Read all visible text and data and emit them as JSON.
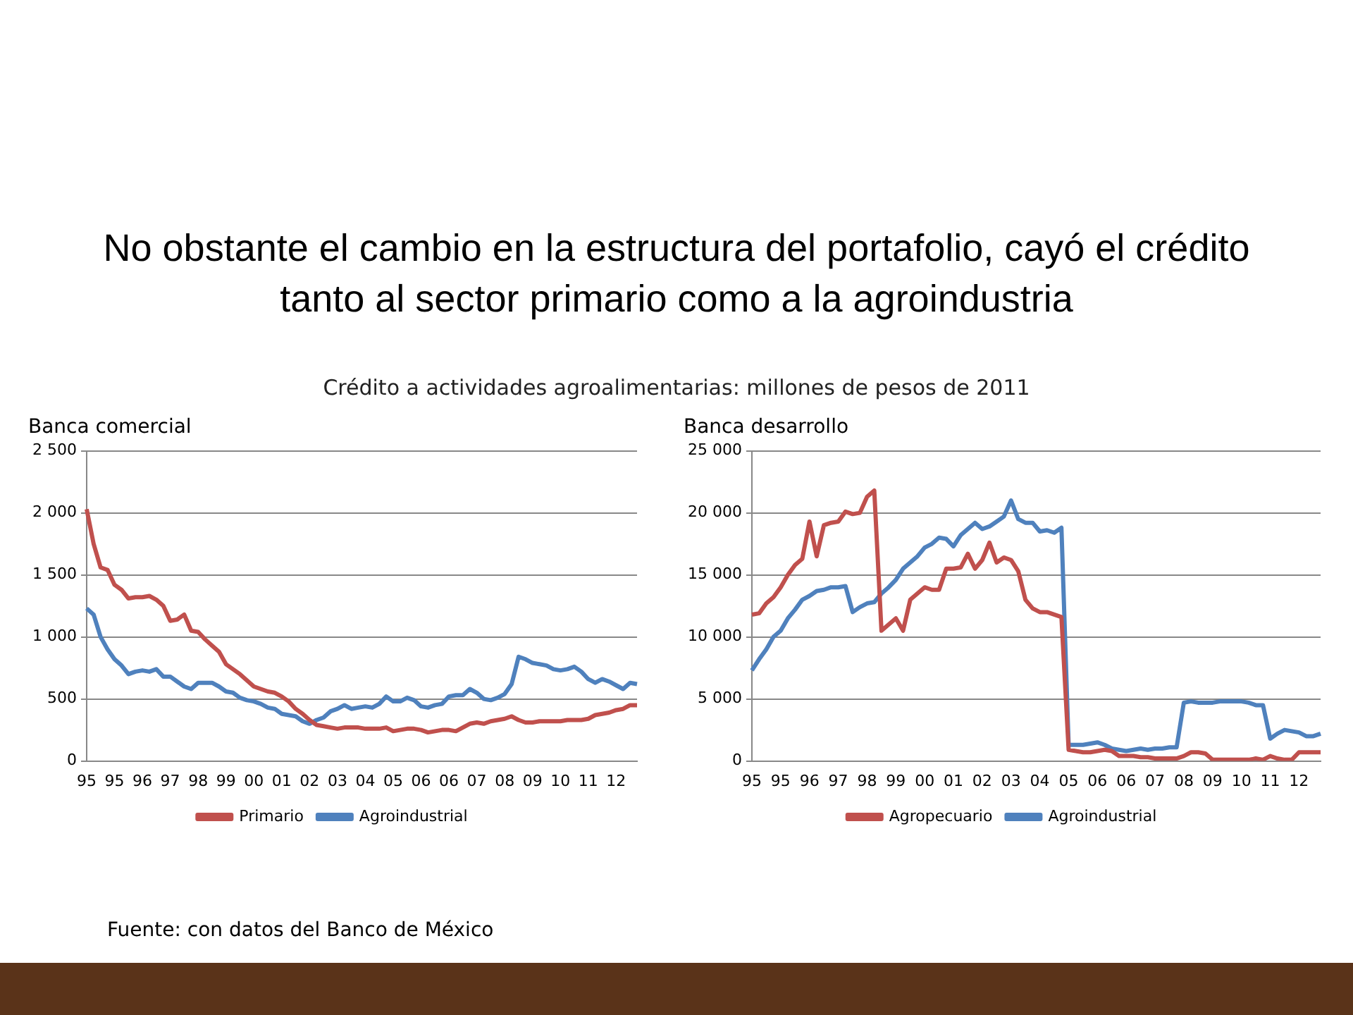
{
  "chart_data": [
    {
      "type": "other",
      "title": "No obstante el cambio en la estructura del portafolio, cayó el crédito tanto al sector primario como a la agroindustria",
      "subtitle": "Crédito a actividades agroalimentarias: millones de pesos de 2011",
      "annotations": [
        "Fuente: con datos del Banco de México"
      ]
    },
    {
      "type": "line",
      "title": "Banca comercial",
      "categories": [
        "95",
        null,
        null,
        null,
        "95",
        null,
        null,
        null,
        "96",
        null,
        null,
        null,
        "97",
        null,
        null,
        null,
        "98",
        null,
        null,
        null,
        "99",
        null,
        null,
        null,
        "00",
        null,
        null,
        null,
        "01",
        null,
        null,
        null,
        "02",
        null,
        null,
        null,
        "03",
        null,
        null,
        null,
        "04",
        null,
        null,
        null,
        "05",
        null,
        null,
        null,
        "06",
        null,
        null,
        null,
        "06",
        null,
        null,
        null,
        "07",
        null,
        null,
        null,
        "08",
        null,
        null,
        null,
        "09",
        null,
        null,
        null,
        "10",
        null,
        null,
        null,
        "11",
        null,
        null,
        null,
        "12",
        null,
        null,
        null
      ],
      "ylim": [
        0,
        2500
      ],
      "yticks": [
        {
          "value": 0,
          "label": "0"
        },
        {
          "value": 500,
          "label": "500"
        },
        {
          "value": 1000,
          "label": "1 000"
        },
        {
          "value": 1500,
          "label": "1 500"
        },
        {
          "value": 2000,
          "label": "2 000"
        },
        {
          "value": 2500,
          "label": "2 500"
        }
      ],
      "grid": "y",
      "legend": "bottom",
      "marker": "none",
      "line_style": "solid",
      "series": [
        {
          "name": "Primario",
          "color": "#c0504d",
          "values": [
            2030,
            1750,
            1560,
            1540,
            1420,
            1380,
            1310,
            1320,
            1320,
            1330,
            1300,
            1250,
            1130,
            1140,
            1180,
            1050,
            1040,
            980,
            930,
            880,
            780,
            740,
            700,
            650,
            600,
            580,
            560,
            550,
            520,
            480,
            420,
            380,
            330,
            290,
            280,
            270,
            260,
            270,
            270,
            270,
            260,
            260,
            260,
            270,
            240,
            250,
            260,
            260,
            250,
            230,
            240,
            250,
            250,
            240,
            270,
            300,
            310,
            300,
            320,
            330,
            340,
            360,
            330,
            310,
            310,
            320,
            320,
            320,
            320,
            330,
            330,
            330,
            340,
            370,
            380,
            390,
            410,
            420,
            450,
            450
          ]
        },
        {
          "name": "Agroindustrial",
          "color": "#4f81bd",
          "values": [
            1230,
            1180,
            1000,
            900,
            820,
            770,
            700,
            720,
            730,
            720,
            740,
            680,
            680,
            640,
            600,
            580,
            630,
            630,
            630,
            600,
            560,
            550,
            510,
            490,
            480,
            460,
            430,
            420,
            380,
            370,
            360,
            320,
            300,
            330,
            350,
            400,
            420,
            450,
            420,
            430,
            440,
            430,
            460,
            520,
            480,
            480,
            510,
            490,
            440,
            430,
            450,
            460,
            520,
            530,
            530,
            580,
            550,
            500,
            490,
            510,
            540,
            620,
            840,
            820,
            790,
            780,
            770,
            740,
            730,
            740,
            760,
            720,
            660,
            630,
            660,
            640,
            610,
            580,
            630,
            620
          ]
        }
      ]
    },
    {
      "type": "line",
      "title": "Banca desarrollo",
      "categories": [
        "95",
        null,
        null,
        null,
        "95",
        null,
        null,
        null,
        "96",
        null,
        null,
        null,
        "97",
        null,
        null,
        null,
        "98",
        null,
        null,
        null,
        "99",
        null,
        null,
        null,
        "00",
        null,
        null,
        null,
        "01",
        null,
        null,
        null,
        "02",
        null,
        null,
        null,
        "03",
        null,
        null,
        null,
        "04",
        null,
        null,
        null,
        "05",
        null,
        null,
        null,
        "06",
        null,
        null,
        null,
        "06",
        null,
        null,
        null,
        "07",
        null,
        null,
        null,
        "08",
        null,
        null,
        null,
        "09",
        null,
        null,
        null,
        "10",
        null,
        null,
        null,
        "11",
        null,
        null,
        null,
        "12",
        null,
        null,
        null
      ],
      "ylim": [
        0,
        25000
      ],
      "yticks": [
        {
          "value": 0,
          "label": "0"
        },
        {
          "value": 5000,
          "label": "5 000"
        },
        {
          "value": 10000,
          "label": "10 000"
        },
        {
          "value": 15000,
          "label": "15 000"
        },
        {
          "value": 20000,
          "label": "20 000"
        },
        {
          "value": 25000,
          "label": "25 000"
        }
      ],
      "grid": "y",
      "legend": "bottom",
      "marker": "none",
      "line_style": "solid",
      "series": [
        {
          "name": "Agropecuario",
          "color": "#c0504d",
          "values": [
            11800,
            11900,
            12700,
            13200,
            14000,
            15000,
            15800,
            16300,
            19300,
            16500,
            19000,
            19200,
            19300,
            20100,
            19900,
            20000,
            21300,
            21800,
            10500,
            11000,
            11500,
            10500,
            13000,
            13500,
            14000,
            13800,
            13800,
            15500,
            15500,
            15600,
            16700,
            15500,
            16200,
            17600,
            16000,
            16400,
            16200,
            15300,
            13000,
            12300,
            12000,
            12000,
            11800,
            11600,
            900,
            800,
            700,
            700,
            800,
            900,
            800,
            400,
            400,
            400,
            300,
            300,
            200,
            200,
            200,
            200,
            400,
            700,
            700,
            600,
            100,
            100,
            100,
            100,
            100,
            100,
            200,
            100,
            400,
            200,
            100,
            100,
            700,
            700,
            700,
            700
          ]
        },
        {
          "name": "Agroindustrial",
          "color": "#4f81bd",
          "values": [
            7300,
            8200,
            9000,
            10000,
            10500,
            11500,
            12200,
            13000,
            13300,
            13700,
            13800,
            14000,
            14000,
            14100,
            12000,
            12400,
            12700,
            12800,
            13500,
            14000,
            14600,
            15500,
            16000,
            16500,
            17200,
            17500,
            18000,
            17900,
            17300,
            18200,
            18700,
            19200,
            18700,
            18900,
            19300,
            19700,
            21000,
            19500,
            19200,
            19200,
            18500,
            18600,
            18400,
            18800,
            1300,
            1300,
            1300,
            1400,
            1500,
            1300,
            1000,
            900,
            800,
            900,
            1000,
            900,
            1000,
            1000,
            1100,
            1100,
            4700,
            4800,
            4700,
            4700,
            4700,
            4800,
            4800,
            4800,
            4800,
            4700,
            4500,
            4500,
            1800,
            2200,
            2500,
            2400,
            2300,
            2000,
            2000,
            2200
          ]
        }
      ]
    }
  ]
}
